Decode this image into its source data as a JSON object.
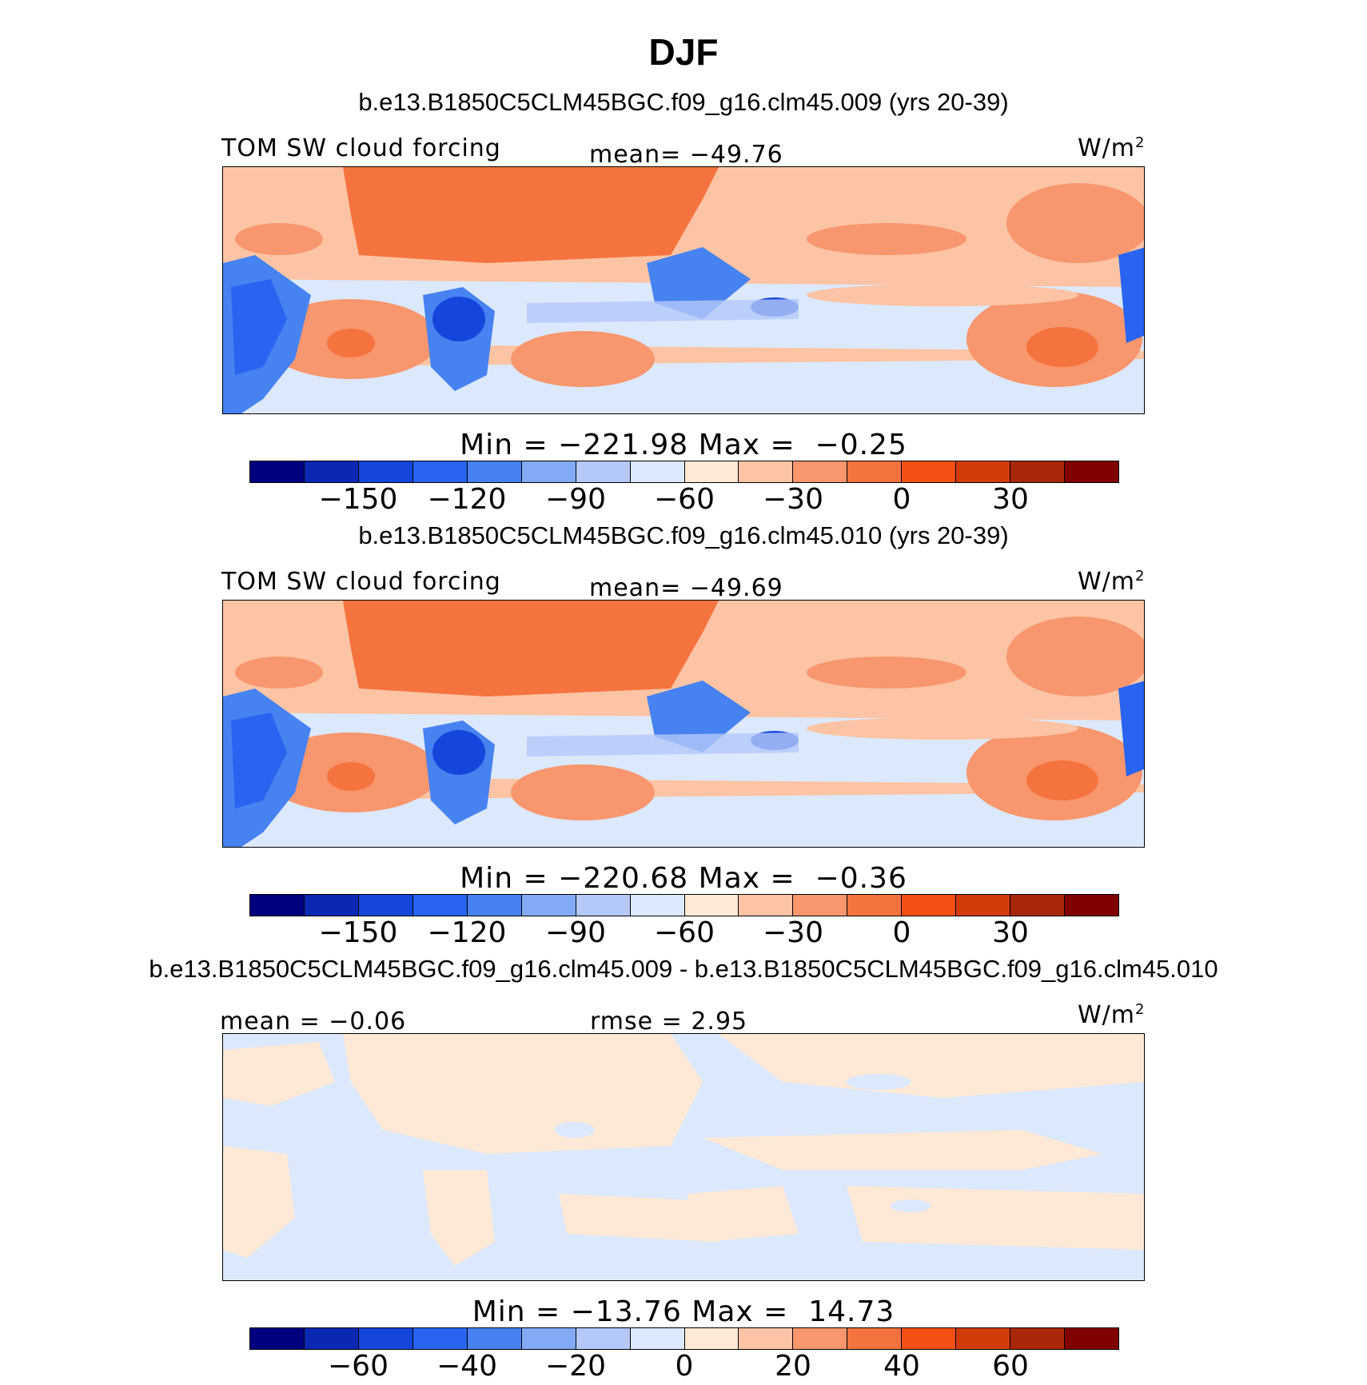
{
  "season": "DJF",
  "colors": [
    "#000080",
    "#0a28b4",
    "#1446dc",
    "#2864f0",
    "#4682f0",
    "#82aaf5",
    "#b4c8fa",
    "#dce8fc",
    "#fde9d6",
    "#fcc4a4",
    "#f8966e",
    "#f5733e",
    "#f55014",
    "#d23c0a",
    "#aa280a",
    "#800000"
  ],
  "panels": [
    {
      "title": "b.e13.B1850C5CLM45BGC.f09_g16.clm45.009 (yrs 20-39)",
      "left_label": "TOM SW cloud forcing",
      "center_label": "mean= −49.76",
      "units": "W/m",
      "units_sup": "2",
      "minmax": "Min = −221.98 Max =  −0.25",
      "ticks": [
        "−150",
        "−120",
        "−90",
        "−60",
        "−30",
        "0",
        "30"
      ]
    },
    {
      "title": "b.e13.B1850C5CLM45BGC.f09_g16.clm45.010 (yrs 20-39)",
      "left_label": "TOM SW cloud forcing",
      "center_label": "mean= −49.69",
      "units": "W/m",
      "units_sup": "2",
      "minmax": "Min = −220.68 Max =  −0.36",
      "ticks": [
        "−150",
        "−120",
        "−90",
        "−60",
        "−30",
        "0",
        "30"
      ]
    },
    {
      "title": "b.e13.B1850C5CLM45BGC.f09_g16.clm45.009 - b.e13.B1850C5CLM45BGC.f09_g16.clm45.010",
      "left_label": "mean =  −0.06",
      "center_label": "rmse =   2.95",
      "units": "W/m",
      "units_sup": "2",
      "minmax": "Min = −13.76 Max =  14.73",
      "ticks": [
        "−60",
        "−40",
        "−20",
        "0",
        "20",
        "40",
        "60"
      ]
    }
  ]
}
